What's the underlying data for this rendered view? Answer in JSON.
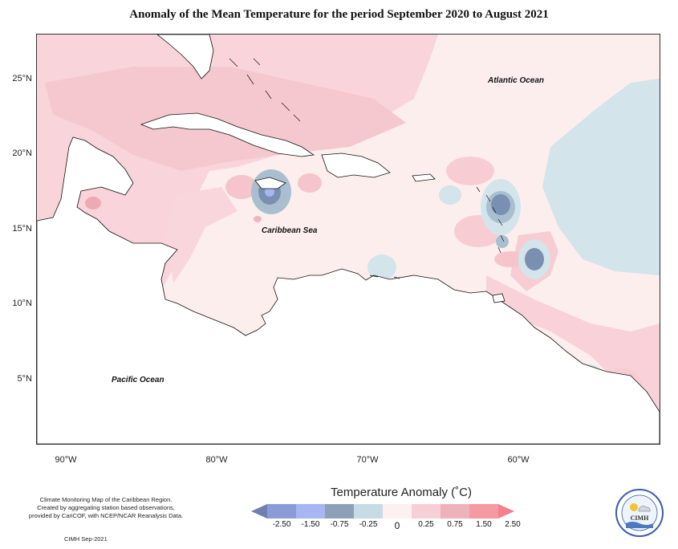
{
  "title": "Anomaly of the Mean Temperature for the period September 2020 to August 2021",
  "map": {
    "ocean_labels": {
      "atlantic": "Atlantic Ocean",
      "caribbean": "Caribbean Sea",
      "pacific": "Pacific Ocean"
    },
    "lat_ticks": [
      "25°N",
      "20°N",
      "15°N",
      "10°N",
      "5°N"
    ],
    "lon_ticks": [
      "90°W",
      "80°W",
      "70°W",
      "60°W"
    ],
    "colors": {
      "background": "#fdeeee",
      "land": "#ffffff",
      "pink_light": "#f9dde0",
      "pink": "#f5c5cb",
      "pink_mid": "#eeaab2",
      "blue_light": "#d3e4ea",
      "blue_mid": "#a9bfd0",
      "blue_dark": "#7a90b0"
    }
  },
  "legend": {
    "title": "Temperature Anomaly (˚C)",
    "ticks": [
      "-2.50",
      "-1.50",
      "-0.75",
      "-0.25",
      "0",
      "0.25",
      "0.75",
      "1.50",
      "2.50"
    ],
    "colors": [
      "#6f7fb0",
      "#8a9bd6",
      "#a7b6f2",
      "#8ea0b8",
      "#c6dbe3",
      "#fdf0f0",
      "#f6d0d6",
      "#eeb3ba",
      "#f59aa3",
      "#f57f8a"
    ]
  },
  "credit": {
    "lines": [
      "Climate Monitoring Map of the Caribbean Region.",
      "Created by aggregating station based observations,",
      "provided by CariCOF, with NCEP/NCAR Reanalysis Data."
    ],
    "date": "CIMH Sep-2021"
  },
  "logo": {
    "text": "CIMH"
  }
}
